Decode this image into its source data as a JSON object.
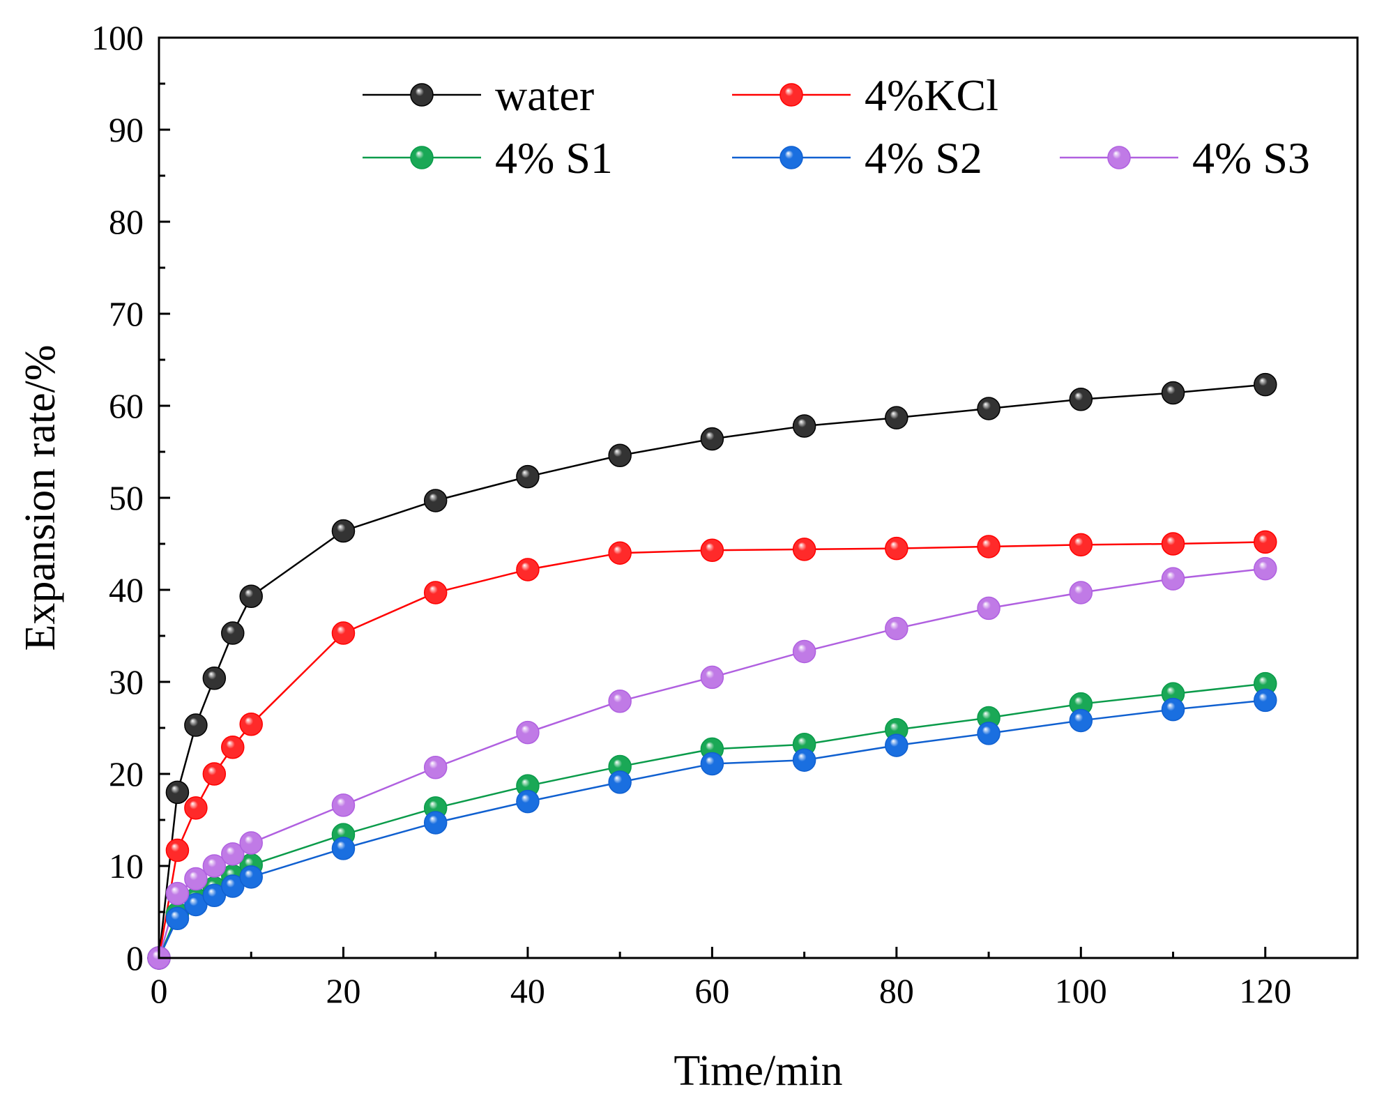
{
  "chart_data": {
    "type": "line",
    "title": "",
    "xlabel": "Time/min",
    "ylabel": "Expansion rate/%",
    "xlim": [
      0,
      130
    ],
    "ylim": [
      0,
      100
    ],
    "xticks": [
      0,
      20,
      40,
      60,
      80,
      100,
      120
    ],
    "yticks": [
      0,
      10,
      20,
      30,
      40,
      50,
      60,
      70,
      80,
      90,
      100
    ],
    "grid": false,
    "legend_position": "top",
    "x": [
      0,
      2,
      4,
      6,
      8,
      10,
      20,
      30,
      40,
      50,
      60,
      70,
      80,
      90,
      100,
      110,
      120
    ],
    "series": [
      {
        "name": "water",
        "color": "#333333",
        "line_color": "#000000",
        "values": [
          0,
          18.0,
          25.3,
          30.4,
          35.3,
          39.3,
          46.4,
          49.7,
          52.3,
          54.6,
          56.4,
          57.8,
          58.7,
          59.7,
          60.7,
          61.4,
          62.3
        ]
      },
      {
        "name": "4%KCl",
        "color": "#ff2a2a",
        "line_color": "#ff0000",
        "values": [
          0,
          11.7,
          16.3,
          20.0,
          22.9,
          25.4,
          35.3,
          39.7,
          42.2,
          44.0,
          44.3,
          44.4,
          44.5,
          44.7,
          44.9,
          45.0,
          45.2
        ]
      },
      {
        "name": "4% S1",
        "color": "#1aa856",
        "line_color": "#0a9b4a",
        "values": [
          0,
          4.8,
          6.4,
          7.6,
          8.9,
          10.1,
          13.4,
          16.3,
          18.7,
          20.8,
          22.7,
          23.2,
          24.8,
          26.1,
          27.6,
          28.7,
          29.8
        ]
      },
      {
        "name": "4% S2",
        "color": "#1a6fe0",
        "line_color": "#1060d0",
        "values": [
          0,
          4.3,
          5.8,
          6.8,
          7.8,
          8.8,
          11.9,
          14.7,
          17.0,
          19.1,
          21.1,
          21.5,
          23.1,
          24.4,
          25.8,
          27.0,
          28.0
        ]
      },
      {
        "name": "4% S3",
        "color": "#c07ae6",
        "line_color": "#b060e0",
        "values": [
          0,
          7.0,
          8.6,
          10.0,
          11.3,
          12.5,
          16.6,
          20.7,
          24.5,
          27.9,
          30.5,
          33.3,
          35.8,
          38.0,
          39.7,
          41.2,
          42.3
        ]
      }
    ]
  }
}
